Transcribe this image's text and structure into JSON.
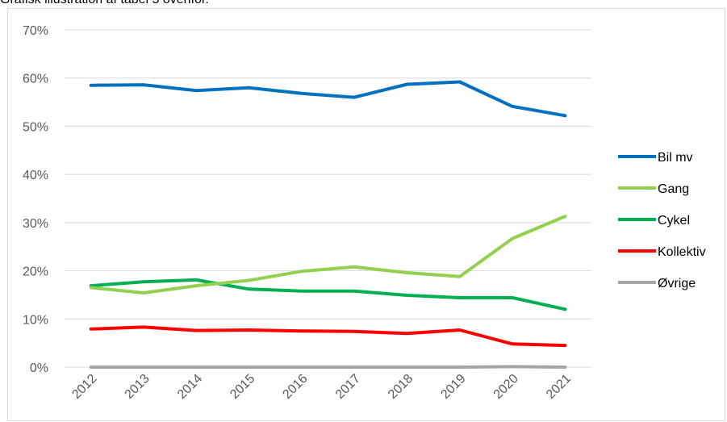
{
  "caption": "Grafisk illustration af tabel 5 ovenfor.",
  "chart_data": {
    "type": "line",
    "categories": [
      "2012",
      "2013",
      "2014",
      "2015",
      "2016",
      "2017",
      "2018",
      "2019",
      "2020",
      "2021"
    ],
    "yticks": [
      "0%",
      "10%",
      "20%",
      "30%",
      "40%",
      "50%",
      "60%",
      "70%"
    ],
    "ylim": [
      0,
      70
    ],
    "grid": true,
    "legend_position": "right",
    "series": [
      {
        "name": "Bil mv",
        "color": "#0070c0",
        "values": [
          58.5,
          58.6,
          57.4,
          58.0,
          56.8,
          56.0,
          58.7,
          59.2,
          54.1,
          52.2
        ]
      },
      {
        "name": "Gang",
        "color": "#92d050",
        "values": [
          16.5,
          15.4,
          16.9,
          18.0,
          19.9,
          20.8,
          19.6,
          18.8,
          26.7,
          31.3
        ]
      },
      {
        "name": "Cykel",
        "color": "#00b050",
        "values": [
          16.9,
          17.7,
          18.1,
          16.2,
          15.8,
          15.8,
          14.9,
          14.4,
          14.4,
          12.0
        ]
      },
      {
        "name": "Kollektiv",
        "color": "#ff0000",
        "values": [
          7.9,
          8.3,
          7.6,
          7.7,
          7.5,
          7.4,
          7.0,
          7.7,
          4.8,
          4.5
        ]
      },
      {
        "name": "Øvrige",
        "color": "#a5a5a5",
        "values": [
          0.0,
          0.0,
          0.0,
          0.0,
          0.0,
          0.0,
          0.0,
          0.0,
          0.1,
          0.0
        ]
      }
    ]
  }
}
